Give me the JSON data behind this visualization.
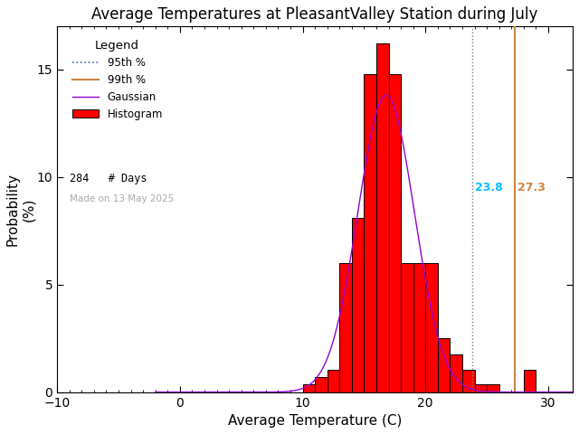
{
  "title": "Average Temperatures at PleasantValley Station during July",
  "xlabel": "Average Temperature (C)",
  "ylabel": "Probability\n(%)",
  "xlim": [
    -10,
    32
  ],
  "ylim": [
    0,
    17.0
  ],
  "xticks": [
    -10,
    0,
    10,
    20,
    30
  ],
  "yticks": [
    0,
    5,
    10,
    15
  ],
  "bar_left_edges": [
    10,
    11,
    12,
    13,
    14,
    15,
    16,
    17,
    18,
    19,
    20,
    21,
    22,
    23,
    24,
    25,
    27,
    28
  ],
  "bar_heights": [
    0.35,
    0.7,
    1.05,
    6.0,
    8.1,
    14.8,
    16.2,
    14.8,
    6.0,
    6.0,
    6.0,
    2.5,
    1.75,
    1.05,
    0.35,
    0.35,
    0.0,
    1.05
  ],
  "bar_color": "#ff0000",
  "bar_edgecolor": "#000000",
  "gaussian_color": "#9400d3",
  "gaussian_mean": 16.8,
  "gaussian_std": 2.3,
  "gaussian_peak": 13.8,
  "p95_value": 23.8,
  "p95_line_color": "#808080",
  "p95_text_color": "#00bfff",
  "p99_value": 27.3,
  "p99_color": "#cd853f",
  "n_days": 284,
  "made_on": "Made on 13 May 2025",
  "legend_title": "Legend",
  "legend_p95_color": "#4169e1",
  "background_color": "#ffffff",
  "title_fontsize": 12,
  "label_fontsize": 11,
  "tick_fontsize": 10,
  "minor_ticks_x": [
    -10,
    -9,
    -8,
    -7,
    -6,
    -5,
    -4,
    -3,
    -2,
    -1,
    0,
    1,
    2,
    3,
    4,
    5,
    6,
    7,
    8,
    9,
    10,
    11,
    12,
    13,
    14,
    15,
    16,
    17,
    18,
    19,
    20,
    21,
    22,
    23,
    24,
    25,
    26,
    27,
    28,
    29,
    30
  ]
}
